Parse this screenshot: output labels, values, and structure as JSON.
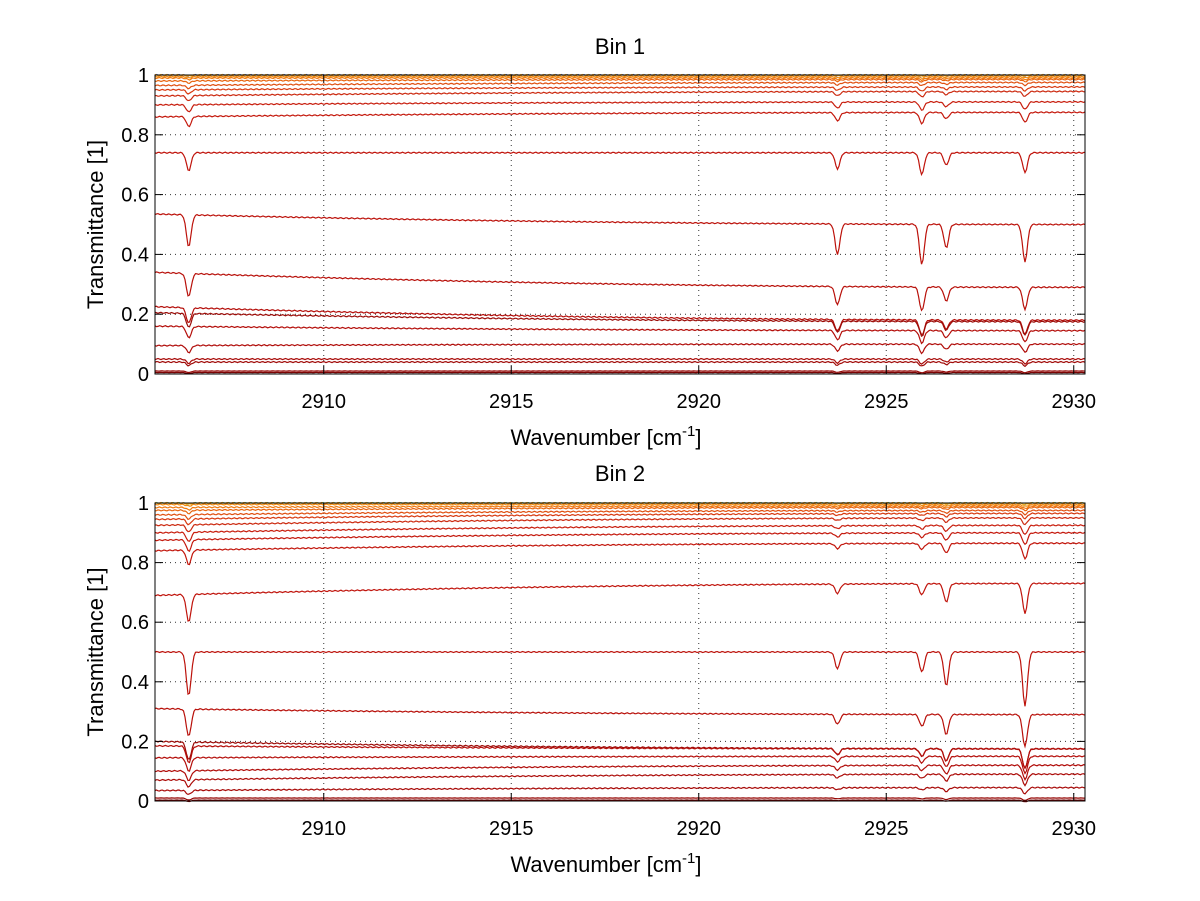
{
  "chart_data": [
    {
      "type": "line",
      "title": "Bin 1",
      "xlabel": "Wavenumber [cm",
      "xlabel_sup": "-1",
      "xlabel_tail": "]",
      "ylabel": "Transmittance [1]",
      "xlim": [
        2905.5,
        2930.3
      ],
      "ylim": [
        0,
        1
      ],
      "grid": true,
      "xticks": [
        2910,
        2915,
        2920,
        2925,
        2930
      ],
      "yticks": [
        0,
        0.2,
        0.4,
        0.6,
        0.8,
        1
      ],
      "xtick_labels": [
        "2910",
        "2915",
        "2920",
        "2925",
        "2930"
      ],
      "ytick_labels": [
        "0",
        "0.2",
        "0.4",
        "0.6",
        "0.8",
        "1"
      ],
      "absorption_lines": [
        {
          "x": 2906.4,
          "rel_depth": 1.0
        },
        {
          "x": 2923.7,
          "rel_depth": 0.9
        },
        {
          "x": 2925.95,
          "rel_depth": 1.2
        },
        {
          "x": 2926.6,
          "rel_depth": 0.7
        },
        {
          "x": 2928.7,
          "rel_depth": 1.1
        }
      ],
      "series": [
        {
          "values_at_start": 1.0,
          "values_at_end": 1.0,
          "color": "#1f4fd6"
        },
        {
          "values_at_start": 1.0,
          "values_at_end": 1.0,
          "color": "#f7a71a"
        },
        {
          "values_at_start": 0.995,
          "values_at_end": 0.995,
          "color": "#f08c12"
        },
        {
          "values_at_start": 0.99,
          "values_at_end": 0.99,
          "color": "#f07a10"
        },
        {
          "values_at_start": 0.98,
          "values_at_end": 0.985,
          "color": "#e8650f"
        },
        {
          "values_at_start": 0.965,
          "values_at_end": 0.975,
          "color": "#e05010"
        },
        {
          "values_at_start": 0.95,
          "values_at_end": 0.96,
          "color": "#d83a10"
        },
        {
          "values_at_start": 0.93,
          "values_at_end": 0.945,
          "color": "#cc2a10"
        },
        {
          "values_at_start": 0.9,
          "values_at_end": 0.91,
          "color": "#c81e0e"
        },
        {
          "values_at_start": 0.86,
          "values_at_end": 0.875,
          "color": "#c4180c"
        },
        {
          "values_at_start": 0.74,
          "values_at_end": 0.74,
          "color": "#c0140c"
        },
        {
          "values_at_start": 0.535,
          "values_at_end": 0.5,
          "color": "#bc120b"
        },
        {
          "values_at_start": 0.34,
          "values_at_end": 0.29,
          "color": "#b8100a"
        },
        {
          "values_at_start": 0.225,
          "values_at_end": 0.18,
          "color": "#b40e0a"
        },
        {
          "values_at_start": 0.205,
          "values_at_end": 0.175,
          "color": "#9c0c08"
        },
        {
          "values_at_start": 0.16,
          "values_at_end": 0.145,
          "color": "#b40e0a"
        },
        {
          "values_at_start": 0.095,
          "values_at_end": 0.1,
          "color": "#b00c09"
        },
        {
          "values_at_start": 0.05,
          "values_at_end": 0.05,
          "color": "#a80a08"
        },
        {
          "values_at_start": 0.04,
          "values_at_end": 0.04,
          "color": "#a00a08"
        },
        {
          "values_at_start": 0.01,
          "values_at_end": 0.01,
          "color": "#960806"
        },
        {
          "values_at_start": 0.005,
          "values_at_end": 0.005,
          "color": "#7a0404"
        }
      ]
    },
    {
      "type": "line",
      "title": "Bin 2",
      "xlabel": "Wavenumber [cm",
      "xlabel_sup": "-1",
      "xlabel_tail": "]",
      "ylabel": "Transmittance [1]",
      "xlim": [
        2905.5,
        2930.3
      ],
      "ylim": [
        0,
        1
      ],
      "grid": true,
      "xticks": [
        2910,
        2915,
        2920,
        2925,
        2930
      ],
      "yticks": [
        0,
        0.2,
        0.4,
        0.6,
        0.8,
        1
      ],
      "xtick_labels": [
        "2910",
        "2915",
        "2920",
        "2925",
        "2930"
      ],
      "ytick_labels": [
        "0",
        "0.2",
        "0.4",
        "0.6",
        "0.8",
        "1"
      ],
      "absorption_lines": [
        {
          "x": 2906.4,
          "rel_depth": 1.3
        },
        {
          "x": 2923.7,
          "rel_depth": 0.5
        },
        {
          "x": 2925.95,
          "rel_depth": 0.6
        },
        {
          "x": 2926.6,
          "rel_depth": 1.0
        },
        {
          "x": 2928.7,
          "rel_depth": 1.6
        }
      ],
      "series": [
        {
          "values_at_start": 1.0,
          "values_at_end": 1.0,
          "color": "#3cc4a0"
        },
        {
          "values_at_start": 1.0,
          "values_at_end": 1.0,
          "color": "#f7a71a"
        },
        {
          "values_at_start": 0.995,
          "values_at_end": 0.995,
          "color": "#f08c12"
        },
        {
          "values_at_start": 0.985,
          "values_at_end": 0.99,
          "color": "#f07a10"
        },
        {
          "values_at_start": 0.975,
          "values_at_end": 0.985,
          "color": "#e8650f"
        },
        {
          "values_at_start": 0.96,
          "values_at_end": 0.975,
          "color": "#e05010"
        },
        {
          "values_at_start": 0.945,
          "values_at_end": 0.965,
          "color": "#d83a10"
        },
        {
          "values_at_start": 0.925,
          "values_at_end": 0.95,
          "color": "#cc2a10"
        },
        {
          "values_at_start": 0.9,
          "values_at_end": 0.925,
          "color": "#c81e0e"
        },
        {
          "values_at_start": 0.875,
          "values_at_end": 0.9,
          "color": "#c4180c"
        },
        {
          "values_at_start": 0.84,
          "values_at_end": 0.865,
          "color": "#c2160c"
        },
        {
          "values_at_start": 0.69,
          "values_at_end": 0.73,
          "color": "#c0140c"
        },
        {
          "values_at_start": 0.5,
          "values_at_end": 0.5,
          "color": "#bc120b"
        },
        {
          "values_at_start": 0.31,
          "values_at_end": 0.29,
          "color": "#b8100a"
        },
        {
          "values_at_start": 0.2,
          "values_at_end": 0.175,
          "color": "#9c0c08"
        },
        {
          "values_at_start": 0.185,
          "values_at_end": 0.175,
          "color": "#b40e0a"
        },
        {
          "values_at_start": 0.145,
          "values_at_end": 0.15,
          "color": "#b40e0a"
        },
        {
          "values_at_start": 0.1,
          "values_at_end": 0.12,
          "color": "#b00c09"
        },
        {
          "values_at_start": 0.07,
          "values_at_end": 0.09,
          "color": "#ac0c09"
        },
        {
          "values_at_start": 0.035,
          "values_at_end": 0.045,
          "color": "#a80a08"
        },
        {
          "values_at_start": 0.01,
          "values_at_end": 0.01,
          "color": "#960806"
        },
        {
          "values_at_start": 0.003,
          "values_at_end": 0.003,
          "color": "#7a0404"
        }
      ]
    }
  ]
}
